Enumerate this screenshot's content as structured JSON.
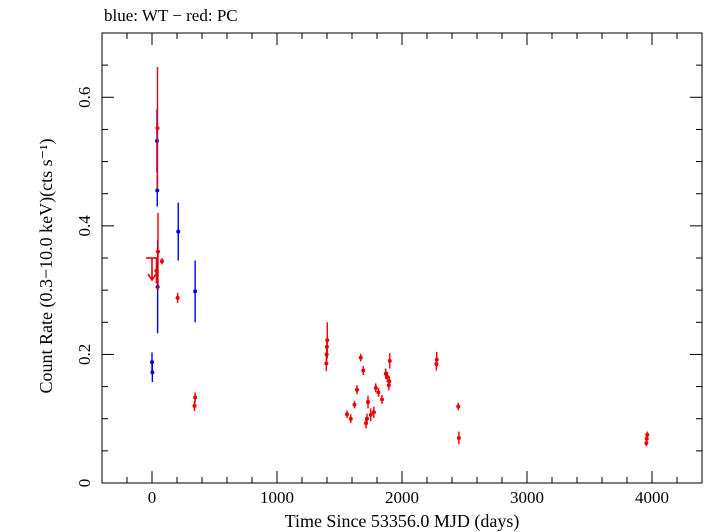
{
  "title": "blue: WT − red: PC",
  "chart_data": {
    "type": "scatter",
    "title": "blue: WT − red: PC",
    "xlabel": "Time Since 53356.0 MJD (days)",
    "ylabel": "Count Rate (0.3−10.0 keV)(cts s⁻¹)",
    "xlim": [
      -400,
      4400
    ],
    "ylim": [
      0,
      0.7
    ],
    "x_ticks": [
      0,
      1000,
      2000,
      3000,
      4000
    ],
    "x_tick_labels": [
      "0",
      "1000",
      "2000",
      "3000",
      "4000"
    ],
    "y_ticks": [
      0,
      0.2,
      0.4,
      0.6
    ],
    "y_tick_labels": [
      "0",
      "0.2",
      "0.4",
      "0.6"
    ],
    "grid": false,
    "legend": "none",
    "series": [
      {
        "name": "WT",
        "color": "#0000ee",
        "points": [
          {
            "x": 0,
            "y": 0.188,
            "yerr": 0.015
          },
          {
            "x": 3,
            "y": 0.172,
            "yerr": 0.015
          },
          {
            "x": 40,
            "y": 0.532,
            "yerr": 0.05
          },
          {
            "x": 42,
            "y": 0.455,
            "yerr": 0.025
          },
          {
            "x": 45,
            "y": 0.305,
            "yerr": 0.072
          },
          {
            "x": 210,
            "y": 0.391,
            "yerr": 0.045
          },
          {
            "x": 345,
            "y": 0.298,
            "yerr": 0.048
          }
        ]
      },
      {
        "name": "PC",
        "color": "#ee0000",
        "points": [
          {
            "x": 35,
            "y": 0.33,
            "yerr": 0.02
          },
          {
            "x": 44,
            "y": 0.552,
            "yerr": 0.095
          },
          {
            "x": 48,
            "y": 0.36,
            "yerr": 0.06
          },
          {
            "x": 80,
            "y": 0.345,
            "yerr": 0.005
          },
          {
            "x": 205,
            "y": 0.288,
            "yerr": 0.008
          },
          {
            "x": 340,
            "y": 0.12,
            "yerr": 0.008
          },
          {
            "x": 345,
            "y": 0.133,
            "yerr": 0.008
          },
          {
            "x": 1395,
            "y": 0.186,
            "yerr": 0.012
          },
          {
            "x": 1397,
            "y": 0.2,
            "yerr": 0.01
          },
          {
            "x": 1399,
            "y": 0.212,
            "yerr": 0.012
          },
          {
            "x": 1402,
            "y": 0.222,
            "yerr": 0.028
          },
          {
            "x": 1560,
            "y": 0.107,
            "yerr": 0.006
          },
          {
            "x": 1590,
            "y": 0.1,
            "yerr": 0.007
          },
          {
            "x": 1620,
            "y": 0.122,
            "yerr": 0.006
          },
          {
            "x": 1640,
            "y": 0.145,
            "yerr": 0.007
          },
          {
            "x": 1670,
            "y": 0.195,
            "yerr": 0.006
          },
          {
            "x": 1690,
            "y": 0.175,
            "yerr": 0.007
          },
          {
            "x": 1712,
            "y": 0.093,
            "yerr": 0.008
          },
          {
            "x": 1720,
            "y": 0.1,
            "yerr": 0.008
          },
          {
            "x": 1728,
            "y": 0.126,
            "yerr": 0.01
          },
          {
            "x": 1750,
            "y": 0.106,
            "yerr": 0.01
          },
          {
            "x": 1775,
            "y": 0.11,
            "yerr": 0.009
          },
          {
            "x": 1790,
            "y": 0.148,
            "yerr": 0.007
          },
          {
            "x": 1812,
            "y": 0.141,
            "yerr": 0.007
          },
          {
            "x": 1840,
            "y": 0.13,
            "yerr": 0.007
          },
          {
            "x": 1870,
            "y": 0.17,
            "yerr": 0.008
          },
          {
            "x": 1882,
            "y": 0.165,
            "yerr": 0.008
          },
          {
            "x": 1895,
            "y": 0.152,
            "yerr": 0.008
          },
          {
            "x": 1898,
            "y": 0.158,
            "yerr": 0.008
          },
          {
            "x": 1902,
            "y": 0.19,
            "yerr": 0.012
          },
          {
            "x": 2275,
            "y": 0.185,
            "yerr": 0.01
          },
          {
            "x": 2278,
            "y": 0.192,
            "yerr": 0.012
          },
          {
            "x": 2450,
            "y": 0.119,
            "yerr": 0.006
          },
          {
            "x": 2455,
            "y": 0.07,
            "yerr": 0.01
          },
          {
            "x": 3955,
            "y": 0.062,
            "yerr": 0.005
          },
          {
            "x": 3958,
            "y": 0.069,
            "yerr": 0.005
          },
          {
            "x": 3962,
            "y": 0.075,
            "yerr": 0.005
          }
        ],
        "upper_limits": [
          {
            "x": 0,
            "y": 0.35
          }
        ]
      }
    ]
  }
}
